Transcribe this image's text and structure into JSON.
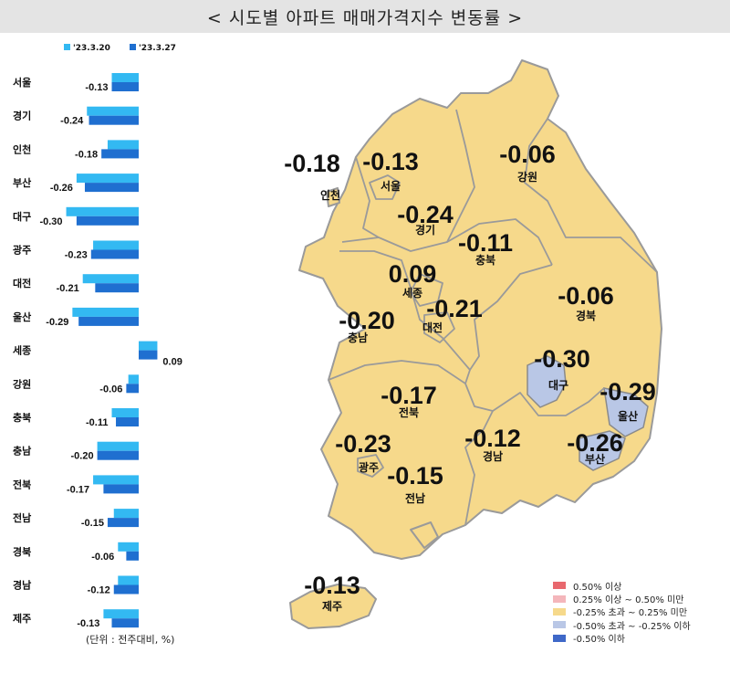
{
  "title": "< 시도별 아파트 매매가격지수 변동률 >",
  "unit_note": "(단위 : 전주대비, %)",
  "colors": {
    "series_prev": "#33b9f2",
    "series_curr": "#1f6fd0",
    "map_default": "#f6d98b",
    "map_low": "#b9c7e6",
    "map_border": "#9a9a9a"
  },
  "chart_data": {
    "type": "bar",
    "orientation": "horizontal",
    "categories": [
      "서울",
      "경기",
      "인천",
      "부산",
      "대구",
      "광주",
      "대전",
      "울산",
      "세종",
      "강원",
      "충북",
      "충남",
      "전북",
      "전남",
      "경북",
      "경남",
      "제주"
    ],
    "series": [
      {
        "name": "'23.3.20",
        "values": [
          -0.13,
          -0.25,
          -0.15,
          -0.3,
          -0.35,
          -0.22,
          -0.27,
          -0.32,
          0.09,
          -0.05,
          -0.13,
          -0.2,
          -0.22,
          -0.12,
          -0.1,
          -0.1,
          -0.17
        ]
      },
      {
        "name": "'23.3.27",
        "values": [
          -0.13,
          -0.24,
          -0.18,
          -0.26,
          -0.3,
          -0.23,
          -0.21,
          -0.29,
          0.09,
          -0.06,
          -0.11,
          -0.2,
          -0.17,
          -0.15,
          -0.06,
          -0.12,
          -0.13
        ]
      }
    ],
    "data_labels": [
      "-0.13",
      "-0.24",
      "-0.18",
      "-0.26",
      "-0.30",
      "-0.23",
      "-0.21",
      "-0.29",
      "0.09",
      "-0.06",
      "-0.11",
      "-0.20",
      "-0.17",
      "-0.15",
      "-0.06",
      "-0.12",
      "-0.13"
    ],
    "legend_position": "top-left",
    "grid": false
  },
  "map_labels": [
    {
      "region": "인천",
      "value": "-0.18"
    },
    {
      "region": "서울",
      "value": "-0.13"
    },
    {
      "region": "강원",
      "value": "-0.06"
    },
    {
      "region": "경기",
      "value": "-0.24"
    },
    {
      "region": "충북",
      "value": "-0.11"
    },
    {
      "region": "세종",
      "value": "0.09"
    },
    {
      "region": "대전",
      "value": "-0.21"
    },
    {
      "region": "경북",
      "value": "-0.06"
    },
    {
      "region": "충남",
      "value": "-0.20"
    },
    {
      "region": "대구",
      "value": "-0.30"
    },
    {
      "region": "전북",
      "value": "-0.17"
    },
    {
      "region": "울산",
      "value": "-0.29"
    },
    {
      "region": "광주",
      "value": "-0.23"
    },
    {
      "region": "경남",
      "value": "-0.12"
    },
    {
      "region": "부산",
      "value": "-0.26"
    },
    {
      "region": "전남",
      "value": "-0.15"
    },
    {
      "region": "제주",
      "value": "-0.13"
    }
  ],
  "legend": [
    {
      "label": "0.50% 이상",
      "color": "#e8686e"
    },
    {
      "label": "0.25% 이상 ~ 0.50% 미만",
      "color": "#f4b6bb"
    },
    {
      "label": "-0.25% 초과 ~ 0.25% 미만",
      "color": "#f6d98b"
    },
    {
      "label": "-0.50% 초과 ~ -0.25% 이하",
      "color": "#b9c7e6"
    },
    {
      "label": "-0.50% 이하",
      "color": "#3f68c8"
    }
  ]
}
